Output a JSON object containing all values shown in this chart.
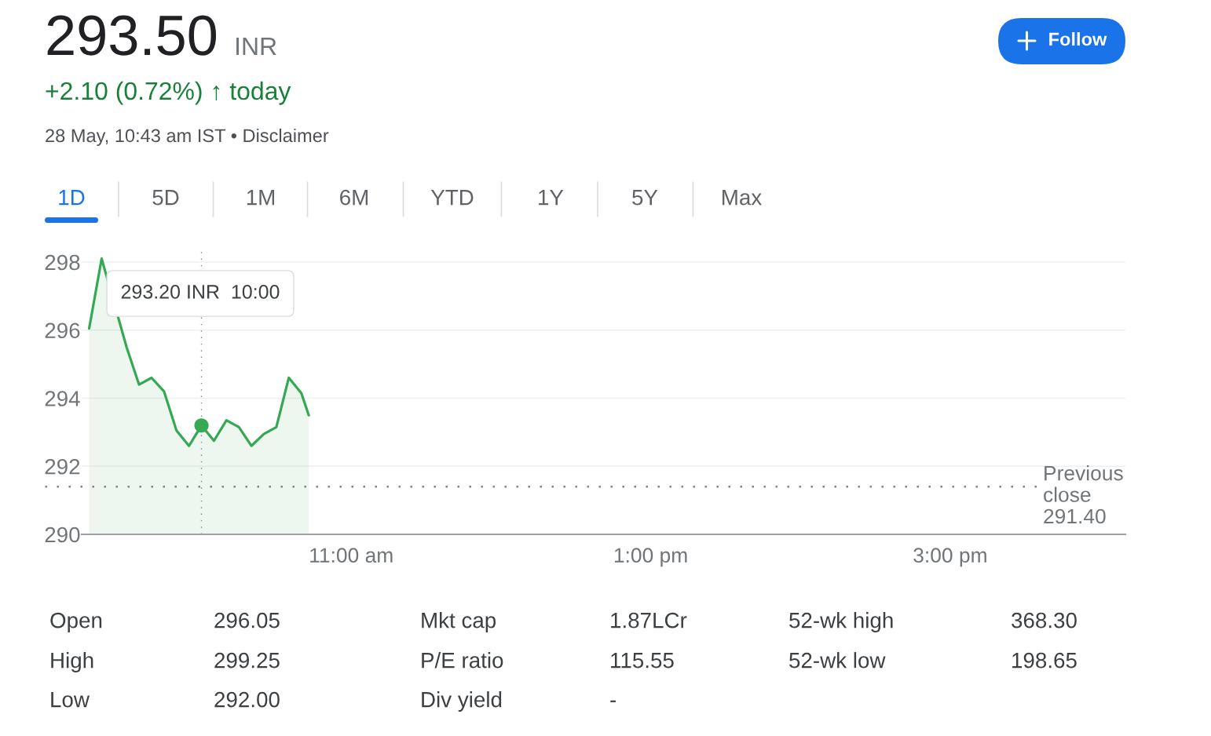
{
  "chart_data": {
    "type": "area",
    "title": "293.50",
    "x": [
      9.25,
      9.3333,
      9.4167,
      9.5,
      9.5833,
      9.6667,
      9.75,
      9.8333,
      9.9167,
      10,
      10.0833,
      10.1667,
      10.25,
      10.3333,
      10.4167,
      10.5,
      10.5833,
      10.6667,
      10.7167
    ],
    "series": [
      {
        "color": "#34a853",
        "values": [
          296.05,
          298.1,
          null,
          295.5,
          294.4,
          294.6,
          294.2,
          293.05,
          292.6,
          293.2,
          292.75,
          293.35,
          293.15,
          292.6,
          292.95,
          293.15,
          294.6,
          294.15,
          293.5
        ]
      },
      {
        "type": "scatter",
        "color": "#34a853",
        "marker": "circle",
        "x": [
          10
        ],
        "values": [
          293.2
        ]
      }
    ],
    "xlim": [
      9.2,
      16.17
    ],
    "xticks": [
      {
        "value": 11,
        "label": "11:00 am"
      },
      {
        "value": 13,
        "label": "1:00 pm"
      },
      {
        "value": 15,
        "label": "3:00 pm"
      }
    ],
    "ylim": [
      290,
      298.3
    ],
    "yticks": [
      290,
      292,
      294,
      296,
      298
    ],
    "grid": "y",
    "ref_lines": [
      {
        "axis": "y",
        "value": 291.4,
        "label": "Previous\nclose\n291.40",
        "line_style": "dotted",
        "color": "#80868b"
      },
      {
        "axis": "x",
        "value": 10,
        "line_style": "dotted",
        "color": "#80868b"
      }
    ],
    "annotations": [
      "INR",
      "+2.10 (0.72%) ↑ today",
      "28 May, 10:43 am IST • Disclaimer",
      "1D",
      "5D",
      "1M",
      "6M",
      "YTD",
      "1Y",
      "5Y",
      "Max",
      "Follow",
      "293.20 INR  10:00",
      "Open",
      "296.05",
      "Mkt cap",
      "1.87LCr",
      "52-wk high",
      "368.30",
      "High",
      "299.25",
      "P/E ratio",
      "115.55",
      "52-wk low",
      "198.65",
      "Low",
      "292.00",
      "Div yield",
      "-"
    ]
  }
}
